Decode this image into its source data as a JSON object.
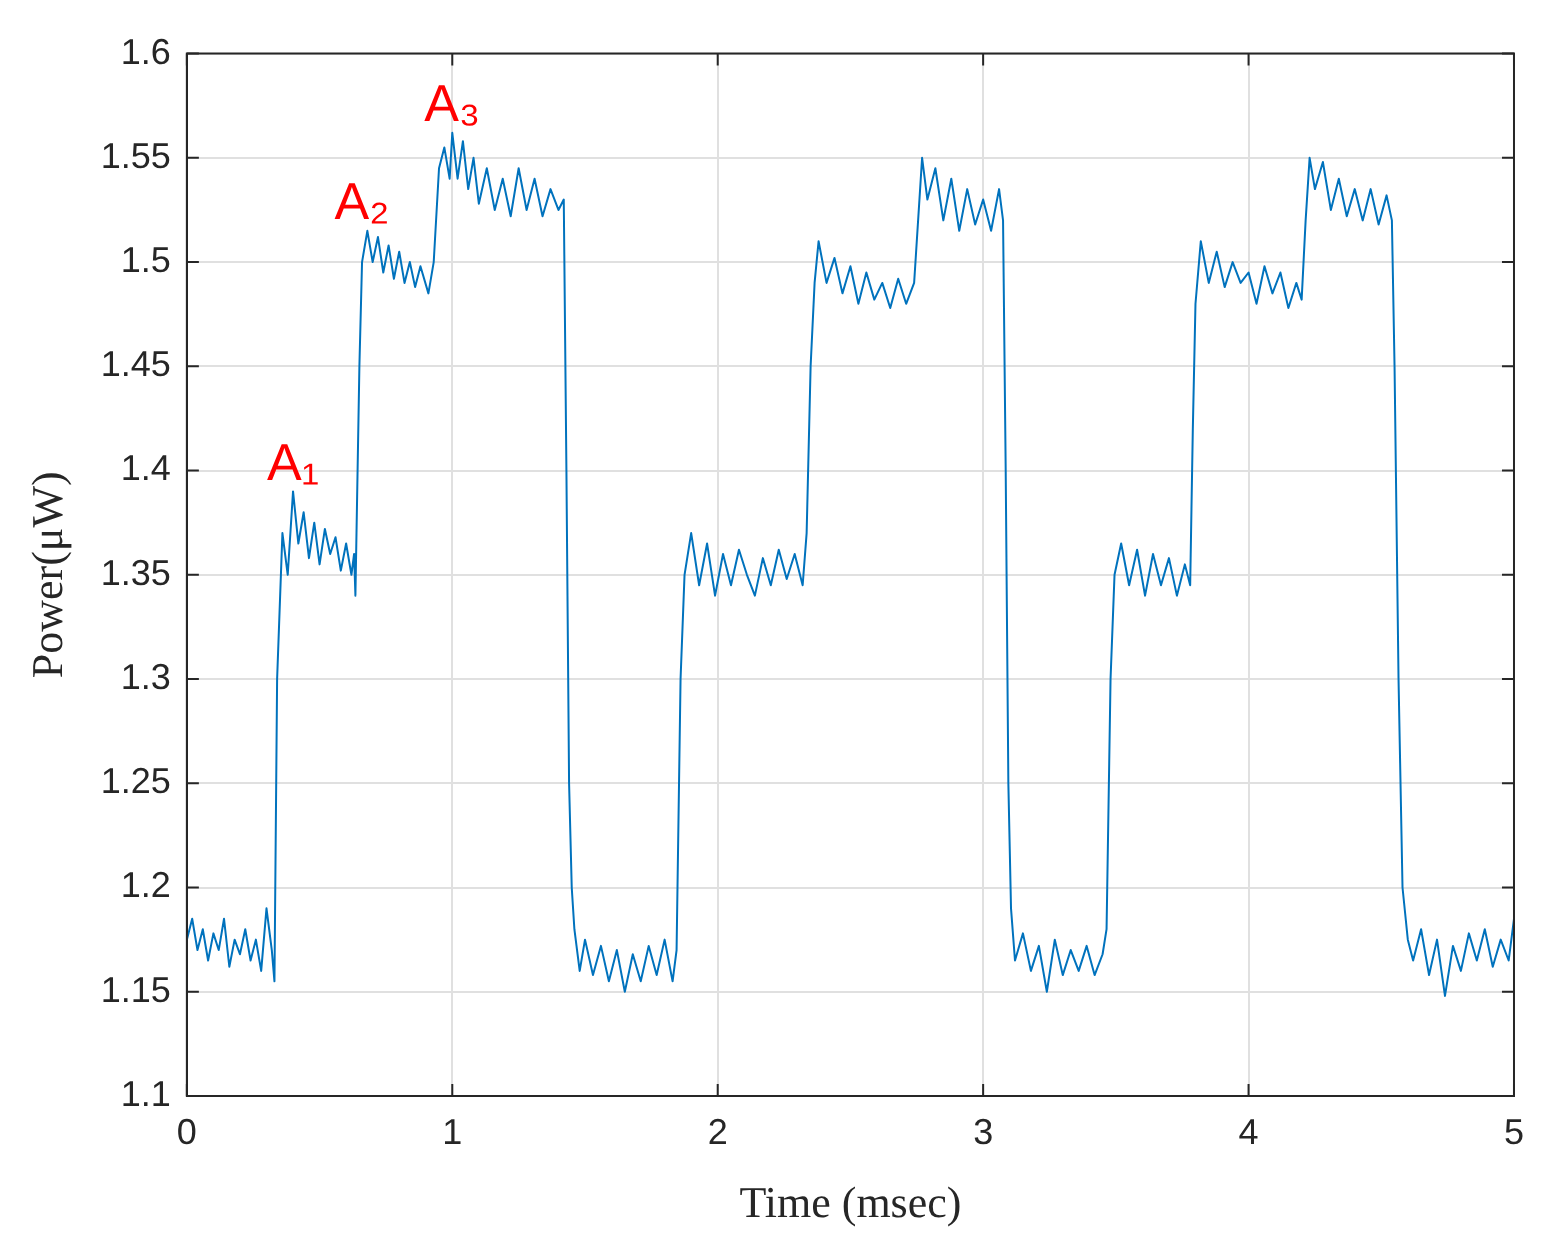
{
  "chart_data": {
    "type": "line",
    "xlabel": "Time (msec)",
    "ylabel": "Power(μW)",
    "annotations": [
      {
        "text": "A₁",
        "x": 0.4,
        "y": 1.39
      },
      {
        "text": "A₂",
        "x": 0.66,
        "y": 1.515
      },
      {
        "text": "A₃",
        "x": 1.0,
        "y": 1.562
      }
    ],
    "x": [
      0,
      0.02,
      0.04,
      0.06,
      0.08,
      0.1,
      0.12,
      0.14,
      0.16,
      0.18,
      0.2,
      0.22,
      0.24,
      0.26,
      0.28,
      0.3,
      0.32,
      0.33,
      0.34,
      0.36,
      0.38,
      0.4,
      0.42,
      0.44,
      0.46,
      0.48,
      0.5,
      0.52,
      0.54,
      0.56,
      0.58,
      0.6,
      0.62,
      0.63,
      0.635,
      0.65,
      0.66,
      0.68,
      0.7,
      0.72,
      0.74,
      0.76,
      0.78,
      0.8,
      0.82,
      0.84,
      0.86,
      0.88,
      0.91,
      0.93,
      0.95,
      0.97,
      0.99,
      1.0,
      1.02,
      1.04,
      1.06,
      1.08,
      1.1,
      1.13,
      1.16,
      1.19,
      1.22,
      1.25,
      1.28,
      1.31,
      1.34,
      1.37,
      1.4,
      1.42,
      1.43,
      1.44,
      1.45,
      1.46,
      1.48,
      1.5,
      1.53,
      1.56,
      1.59,
      1.62,
      1.65,
      1.68,
      1.71,
      1.74,
      1.77,
      1.8,
      1.83,
      1.845,
      1.86,
      1.875,
      1.9,
      1.93,
      1.96,
      1.99,
      2.02,
      2.05,
      2.08,
      2.11,
      2.14,
      2.17,
      2.2,
      2.23,
      2.26,
      2.29,
      2.32,
      2.335,
      2.35,
      2.365,
      2.38,
      2.41,
      2.44,
      2.47,
      2.5,
      2.53,
      2.56,
      2.59,
      2.62,
      2.65,
      2.68,
      2.71,
      2.74,
      2.755,
      2.77,
      2.79,
      2.82,
      2.85,
      2.88,
      2.91,
      2.94,
      2.97,
      3.0,
      3.03,
      3.06,
      3.075,
      3.085,
      3.095,
      3.105,
      3.12,
      3.15,
      3.18,
      3.21,
      3.24,
      3.27,
      3.3,
      3.33,
      3.36,
      3.39,
      3.42,
      3.45,
      3.465,
      3.48,
      3.495,
      3.52,
      3.55,
      3.58,
      3.61,
      3.64,
      3.67,
      3.7,
      3.73,
      3.76,
      3.78,
      3.79,
      3.8,
      3.82,
      3.85,
      3.88,
      3.91,
      3.94,
      3.97,
      4.0,
      4.03,
      4.06,
      4.09,
      4.12,
      4.15,
      4.18,
      4.2,
      4.215,
      4.23,
      4.25,
      4.28,
      4.31,
      4.34,
      4.37,
      4.4,
      4.43,
      4.46,
      4.49,
      4.52,
      4.54,
      4.55,
      4.565,
      4.58,
      4.6,
      4.62,
      4.65,
      4.68,
      4.71,
      4.74,
      4.77,
      4.8,
      4.83,
      4.86,
      4.89,
      4.92,
      4.95,
      4.98,
      5.0
    ],
    "series": [
      {
        "color": "#0072bd",
        "values": [
          1.175,
          1.185,
          1.17,
          1.18,
          1.165,
          1.178,
          1.17,
          1.185,
          1.162,
          1.175,
          1.168,
          1.18,
          1.165,
          1.175,
          1.16,
          1.19,
          1.17,
          1.155,
          1.3,
          1.37,
          1.35,
          1.39,
          1.365,
          1.38,
          1.358,
          1.375,
          1.355,
          1.372,
          1.36,
          1.368,
          1.352,
          1.365,
          1.35,
          1.36,
          1.34,
          1.45,
          1.5,
          1.515,
          1.5,
          1.512,
          1.495,
          1.508,
          1.492,
          1.505,
          1.49,
          1.5,
          1.488,
          1.498,
          1.485,
          1.5,
          1.545,
          1.555,
          1.54,
          1.562,
          1.54,
          1.558,
          1.535,
          1.55,
          1.528,
          1.545,
          1.525,
          1.54,
          1.522,
          1.545,
          1.525,
          1.54,
          1.522,
          1.535,
          1.525,
          1.53,
          1.4,
          1.25,
          1.2,
          1.18,
          1.16,
          1.175,
          1.158,
          1.172,
          1.155,
          1.17,
          1.15,
          1.168,
          1.155,
          1.172,
          1.158,
          1.175,
          1.155,
          1.17,
          1.3,
          1.35,
          1.37,
          1.345,
          1.365,
          1.34,
          1.36,
          1.345,
          1.362,
          1.35,
          1.34,
          1.358,
          1.345,
          1.362,
          1.348,
          1.36,
          1.345,
          1.37,
          1.45,
          1.49,
          1.51,
          1.49,
          1.502,
          1.485,
          1.498,
          1.48,
          1.495,
          1.482,
          1.49,
          1.478,
          1.492,
          1.48,
          1.49,
          1.52,
          1.55,
          1.53,
          1.545,
          1.52,
          1.54,
          1.515,
          1.535,
          1.518,
          1.53,
          1.515,
          1.535,
          1.52,
          1.4,
          1.25,
          1.19,
          1.165,
          1.178,
          1.16,
          1.172,
          1.15,
          1.175,
          1.158,
          1.17,
          1.16,
          1.172,
          1.158,
          1.168,
          1.18,
          1.3,
          1.35,
          1.365,
          1.345,
          1.362,
          1.34,
          1.36,
          1.345,
          1.358,
          1.34,
          1.355,
          1.345,
          1.42,
          1.48,
          1.51,
          1.49,
          1.505,
          1.488,
          1.5,
          1.49,
          1.495,
          1.48,
          1.498,
          1.485,
          1.495,
          1.478,
          1.49,
          1.482,
          1.52,
          1.55,
          1.535,
          1.548,
          1.525,
          1.54,
          1.522,
          1.535,
          1.52,
          1.535,
          1.518,
          1.532,
          1.52,
          1.45,
          1.3,
          1.2,
          1.175,
          1.165,
          1.18,
          1.158,
          1.175,
          1.148,
          1.172,
          1.16,
          1.178,
          1.165,
          1.18,
          1.162,
          1.175,
          1.165,
          1.185
        ]
      }
    ],
    "xlim": [
      0,
      5
    ],
    "xticks": [
      0,
      1,
      2,
      3,
      4,
      5
    ],
    "ylim": [
      1.1,
      1.6
    ],
    "yticks": [
      1.1,
      1.15,
      1.2,
      1.25,
      1.3,
      1.35,
      1.4,
      1.45,
      1.5,
      1.55,
      1.6
    ],
    "grid": true,
    "legend": false
  }
}
